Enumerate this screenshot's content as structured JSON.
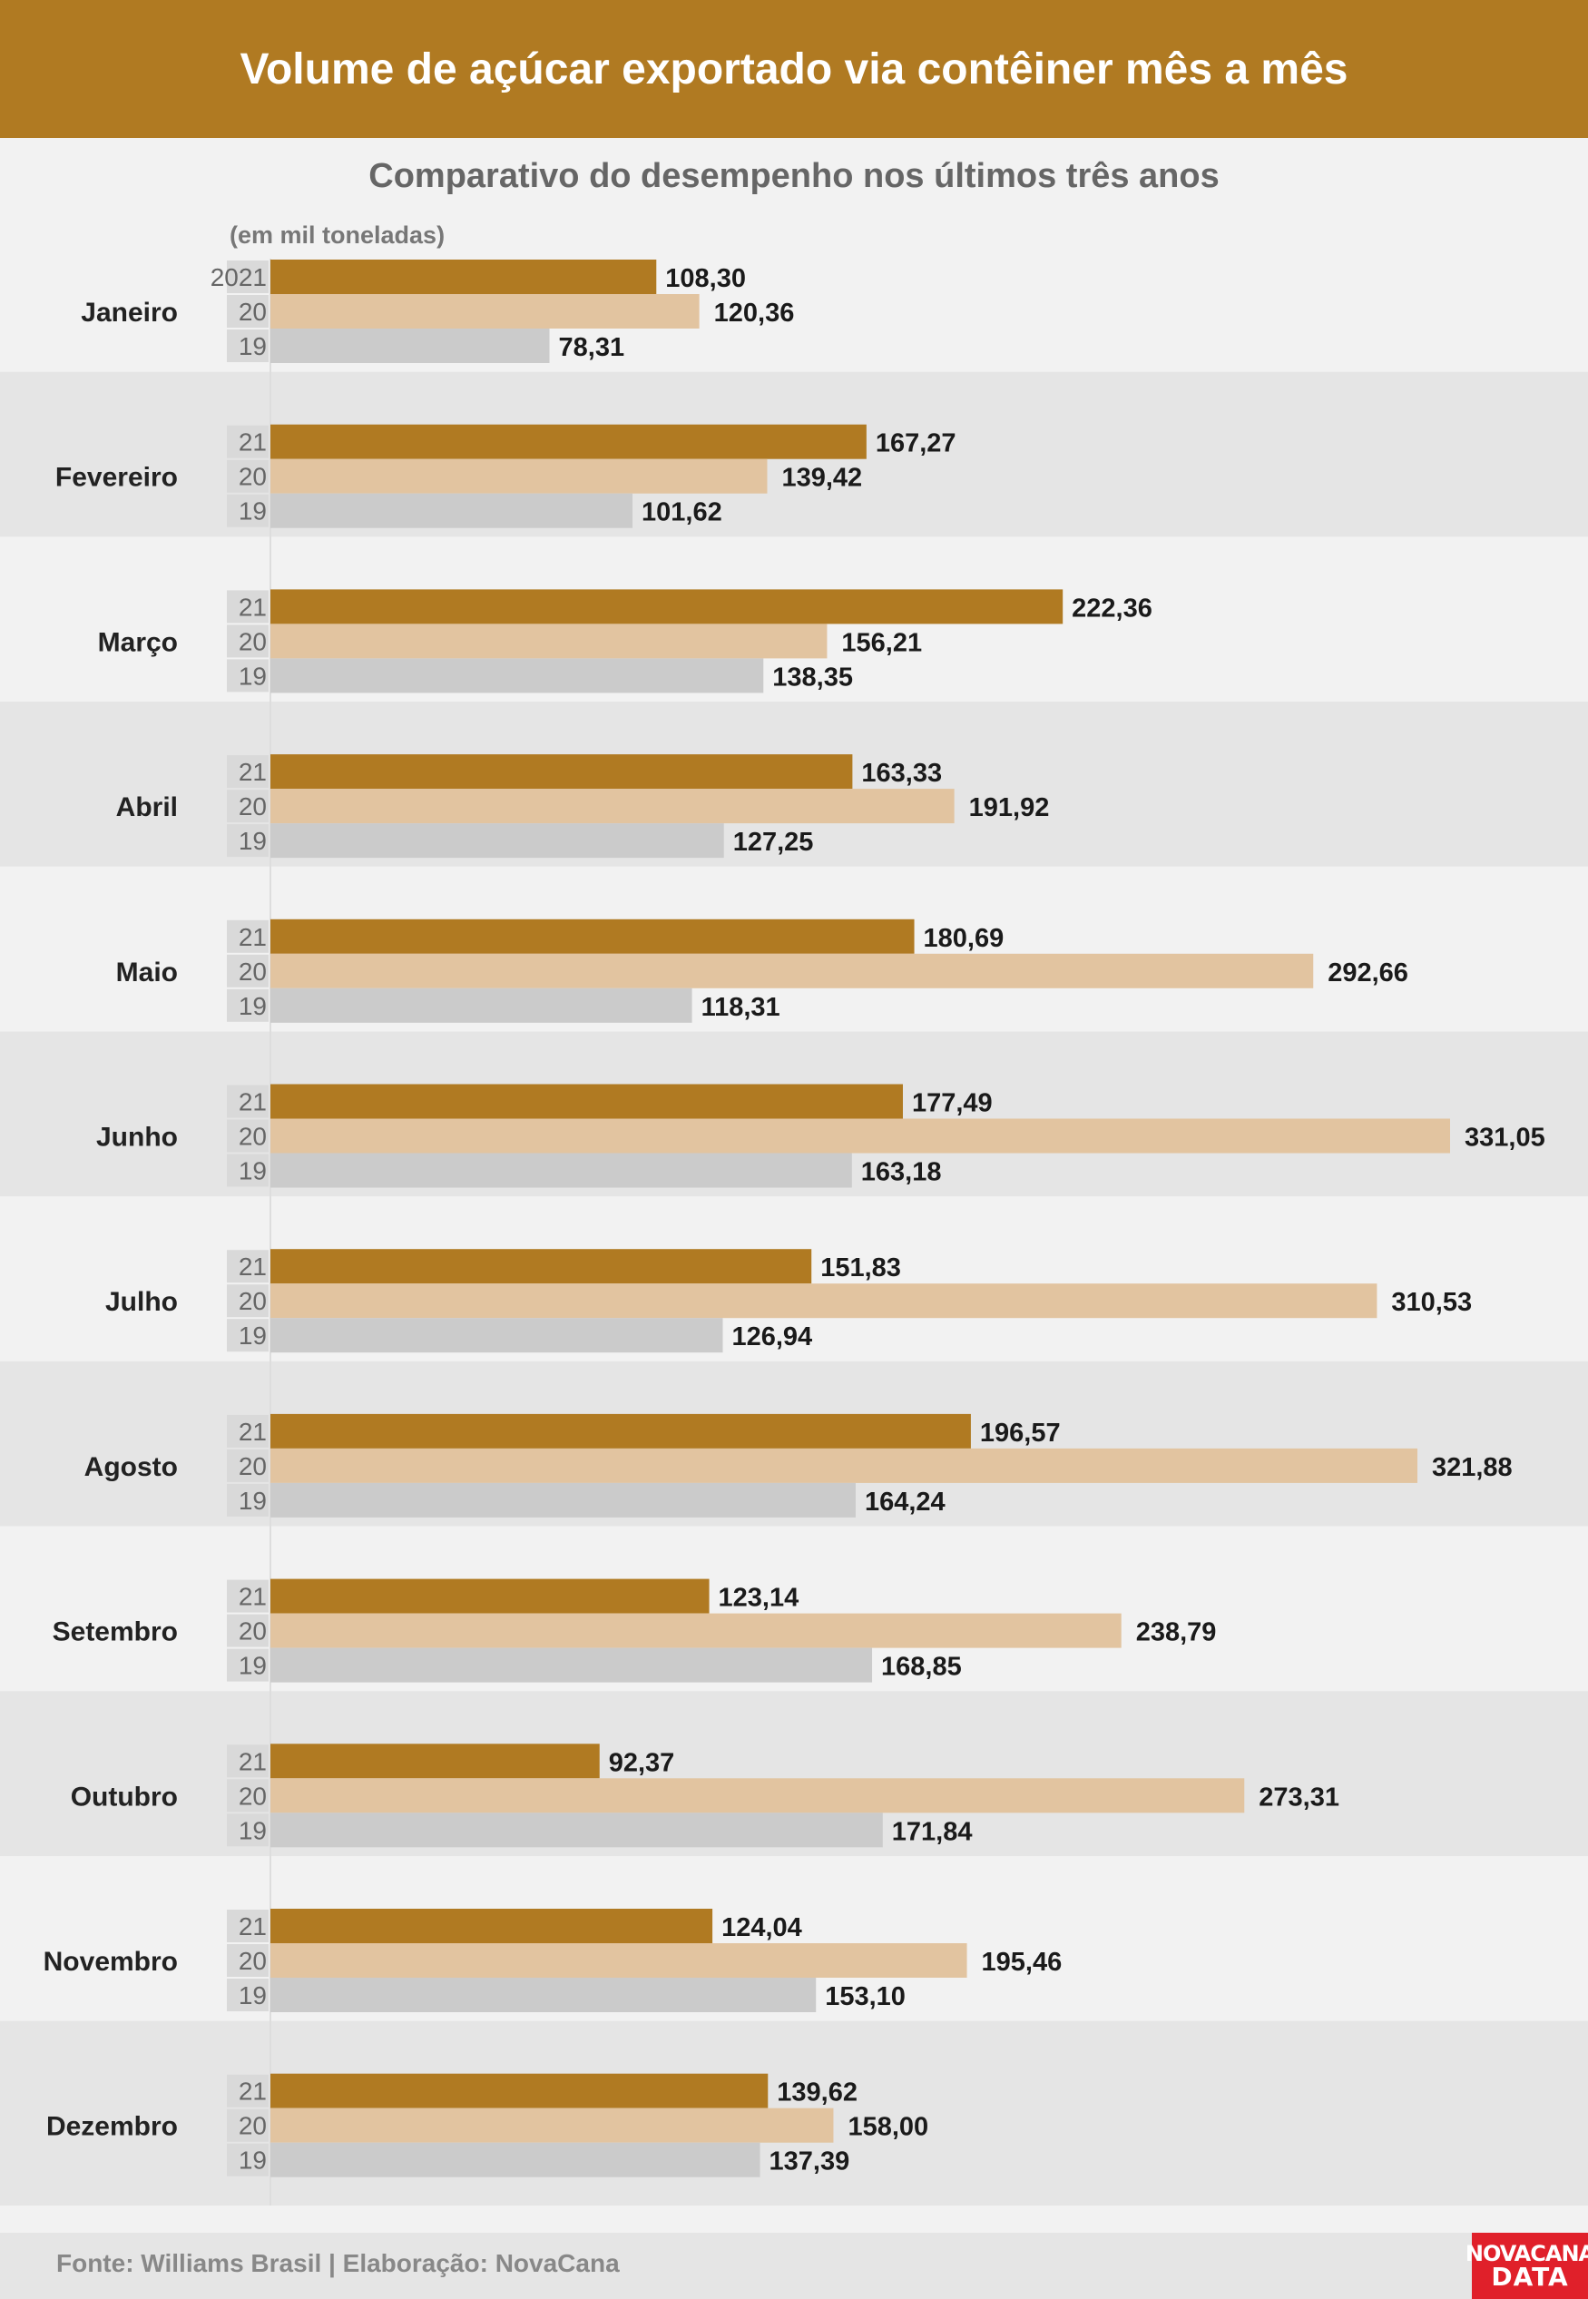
{
  "header": {
    "title": "Volume de açúcar exportado via contêiner mês a mês"
  },
  "subtitle": "Comparativo do desempenho nos últimos três anos",
  "unit_note": "(em mil toneladas)",
  "footer": {
    "source": "Fonte: Williams Brasil | Elaboração: NovaCana"
  },
  "logo": {
    "line1": "NOVACANA",
    "line2": "DATA"
  },
  "colors": {
    "header_bg": "#b07a22",
    "bar_2021": "#b07a22",
    "bar_2020": "#e2c4a0",
    "bar_2019": "#cbcbcb",
    "band_light": "#f2f2f2",
    "band_dark": "#e5e5e5"
  },
  "chart_data": {
    "type": "bar",
    "orientation": "horizontal",
    "unit": "mil toneladas",
    "year_labels": [
      "2021",
      "20",
      "19"
    ],
    "row_labels": [
      "21",
      "20",
      "19"
    ],
    "categories": [
      "Janeiro",
      "Fevereiro",
      "Março",
      "Abril",
      "Maio",
      "Junho",
      "Julho",
      "Agosto",
      "Setembro",
      "Outubro",
      "Novembro",
      "Dezembro"
    ],
    "series": [
      {
        "values": [
          108.3,
          167.27,
          222.36,
          163.33,
          180.69,
          177.49,
          151.83,
          196.57,
          123.14,
          92.37,
          124.04,
          139.62
        ],
        "labels": [
          "108,30",
          "167,27",
          "222,36",
          "163,33",
          "180,69",
          "177,49",
          "151,83",
          "196,57",
          "123,14",
          "92,37",
          "124,04",
          "139,62"
        ]
      },
      {
        "values": [
          120.36,
          139.42,
          156.21,
          191.92,
          292.66,
          331.05,
          310.53,
          321.88,
          238.79,
          273.31,
          195.46,
          158.0
        ],
        "labels": [
          "120,36",
          "139,42",
          "156,21",
          "191,92",
          "292,66",
          "331,05",
          "310,53",
          "321,88",
          "238,79",
          "273,31",
          "195,46",
          "158,00"
        ]
      },
      {
        "values": [
          78.31,
          101.62,
          138.35,
          127.25,
          118.31,
          163.18,
          126.94,
          164.24,
          168.85,
          171.84,
          153.1,
          137.39
        ],
        "labels": [
          "78,31",
          "101,62",
          "138,35",
          "127,25",
          "118,31",
          "163,18",
          "126,94",
          "164,24",
          "168,85",
          "171,84",
          "153,10",
          "137,39"
        ]
      }
    ],
    "xlim": [
      0,
      331.05
    ],
    "legend": "inline"
  }
}
